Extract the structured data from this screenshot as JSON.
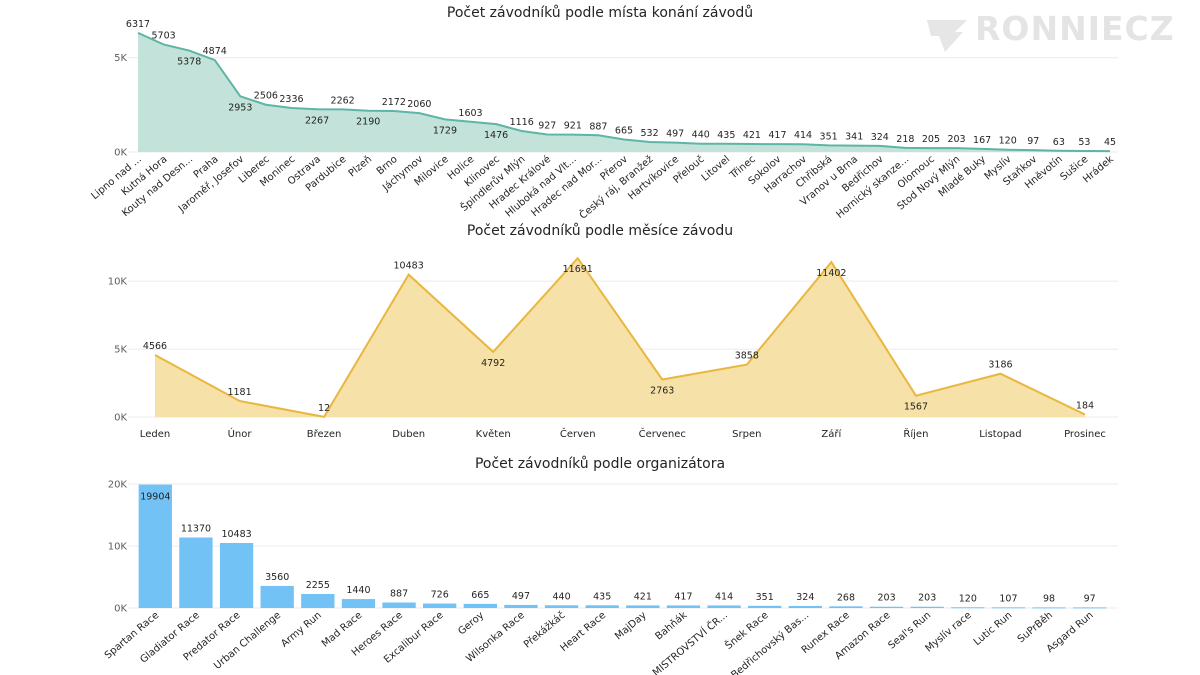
{
  "brand": {
    "logo_text": "RONNIECZ"
  },
  "chart_data": [
    {
      "type": "area",
      "title": "Počet závodníků podle místa konání závodů",
      "color": "#5eb5a4",
      "fill": "#bfe0d8",
      "ylim": [
        0,
        7000
      ],
      "yticks": [
        0,
        5000
      ],
      "ytick_labels": [
        "0K",
        "5K"
      ],
      "categories": [
        "Lipno nad ...",
        "Kutná Hora",
        "Kouty nad Desn...",
        "Praha",
        "Jaroměř, Josefov",
        "Liberec",
        "Moninec",
        "Ostrava",
        "Pardubice",
        "Plzeň",
        "Brno",
        "Jáchymov",
        "Milovice",
        "Holice",
        "Klinovec",
        "Špindlerův Mlýn",
        "Hradec Králové",
        "Hluboká nad Vlt...",
        "Hradec nad Mor...",
        "Přerov",
        "Český ráj, Branžež",
        "Hartvíkovice",
        "Přelouč",
        "Litovel",
        "Třinec",
        "Sokolov",
        "Harrachov",
        "Chřibská",
        "Vranov u Brna",
        "Bedřichov",
        "Hornický skanze...",
        "Olomouc",
        "Stod Nový Mlýn",
        "Mladé Buky",
        "Myslív",
        "Staňkov",
        "Hněvotín",
        "Sušice",
        "Hrádek"
      ],
      "values": [
        6317,
        5703,
        5378,
        4874,
        2953,
        2506,
        2336,
        2267,
        2262,
        2190,
        2172,
        2060,
        1729,
        1603,
        1476,
        1116,
        927,
        921,
        887,
        665,
        532,
        497,
        440,
        435,
        421,
        417,
        414,
        351,
        341,
        324,
        218,
        205,
        203,
        167,
        120,
        97,
        63,
        53,
        45
      ],
      "label_pos": [
        "above",
        "above",
        "below",
        "above",
        "below",
        "above",
        "above",
        "below",
        "above",
        "below",
        "above",
        "above",
        "below",
        "above",
        "below",
        "above",
        "above",
        "above",
        "above",
        "above",
        "above",
        "above",
        "above",
        "above",
        "above",
        "above",
        "above",
        "above",
        "above",
        "above",
        "above",
        "above",
        "above",
        "above",
        "above",
        "above",
        "above",
        "above",
        "above"
      ]
    },
    {
      "type": "area",
      "title": "Počet závodníků podle měsíce závodu",
      "color": "#e8b73e",
      "fill": "#f6dfa4",
      "ylim": [
        0,
        12000
      ],
      "yticks": [
        0,
        5000,
        10000
      ],
      "ytick_labels": [
        "0K",
        "5K",
        "10K"
      ],
      "categories": [
        "Leden",
        "Únor",
        "Březen",
        "Duben",
        "Květen",
        "Červen",
        "Červenec",
        "Srpen",
        "Září",
        "Říjen",
        "Listopad",
        "Prosinec"
      ],
      "values": [
        4566,
        1181,
        12,
        10483,
        4792,
        11691,
        2763,
        3858,
        11402,
        1567,
        3186,
        184
      ],
      "label_pos": [
        "above",
        "above",
        "above",
        "above",
        "below",
        "below",
        "below",
        "above",
        "below",
        "below",
        "above",
        "above"
      ]
    },
    {
      "type": "bar",
      "title": "Počet závodníků podle organizátora",
      "color": "#72c2f6",
      "ylim": [
        0,
        20000
      ],
      "yticks": [
        0,
        10000,
        20000
      ],
      "ytick_labels": [
        "0K",
        "10K",
        "20K"
      ],
      "categories": [
        "Spartan Race",
        "Gladiator Race",
        "Predator Race",
        "Urban Challenge",
        "Army Run",
        "Mad Race",
        "Heroes Race",
        "Excalibur Race",
        "Geroy",
        "Wilsonka Race",
        "Překážkáč",
        "Heart Race",
        "MajDay",
        "Bahňák",
        "MISTROVSTVÍ ČR...",
        "Šnek Race",
        "Bedřichovský Bas...",
        "Runex Race",
        "Amazon Race",
        "Seal's Run",
        "Myslív race",
        "Lutic Run",
        "SuPrBěh",
        "Asgard Run"
      ],
      "values": [
        19904,
        11370,
        10483,
        3560,
        2255,
        1440,
        887,
        726,
        665,
        497,
        440,
        435,
        421,
        417,
        414,
        351,
        324,
        268,
        203,
        203,
        120,
        107,
        98,
        97
      ],
      "label_pos": [
        "inside",
        "above",
        "above",
        "above",
        "above",
        "above",
        "above",
        "above",
        "above",
        "above",
        "above",
        "above",
        "above",
        "above",
        "above",
        "above",
        "above",
        "above",
        "above",
        "above",
        "above",
        "above",
        "above",
        "above"
      ]
    }
  ]
}
